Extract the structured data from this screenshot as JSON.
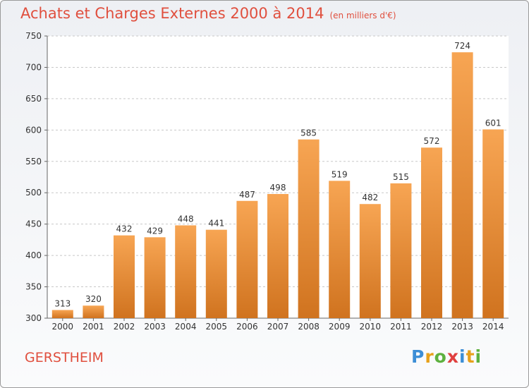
{
  "title": "Achats et Charges Externes 2000 à 2014",
  "unit_label": "(en milliers d'€)",
  "commune": "GERSTHEIM",
  "logo": {
    "letters": [
      "P",
      "r",
      "o",
      "x",
      "i",
      "t",
      "i"
    ],
    "colors": [
      "#3c8ed6",
      "#e7a11b",
      "#5db13f",
      "#e0403f",
      "#3c8ed6",
      "#e7a11b",
      "#5db13f"
    ]
  },
  "colors": {
    "title": "#e04f3e",
    "bar_top": "#f7a553",
    "bar_bottom": "#d0731f",
    "grid": "#c8c8c8"
  },
  "chart_data": {
    "type": "bar",
    "title": "Achats et Charges Externes 2000 à 2014",
    "subtitle": "(en milliers d'€)",
    "categories": [
      "2000",
      "2001",
      "2002",
      "2003",
      "2004",
      "2005",
      "2006",
      "2007",
      "2008",
      "2009",
      "2010",
      "2011",
      "2012",
      "2013",
      "2014"
    ],
    "values": [
      313,
      320,
      432,
      429,
      448,
      441,
      487,
      498,
      585,
      519,
      482,
      515,
      572,
      724,
      601
    ],
    "ylim": [
      300,
      750
    ],
    "yticks": [
      300,
      350,
      400,
      450,
      500,
      550,
      600,
      650,
      700,
      750
    ],
    "grid": true,
    "xlabel": "",
    "ylabel": ""
  }
}
